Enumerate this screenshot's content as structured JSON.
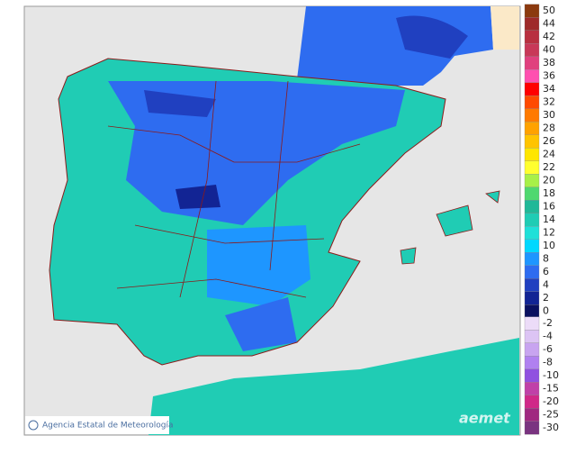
{
  "legend": {
    "entries": [
      {
        "label": "50",
        "color": "#8b3a0f"
      },
      {
        "label": "44",
        "color": "#9e2a2a"
      },
      {
        "label": "42",
        "color": "#b83040"
      },
      {
        "label": "40",
        "color": "#c83858"
      },
      {
        "label": "38",
        "color": "#e0407e"
      },
      {
        "label": "36",
        "color": "#ff50b0"
      },
      {
        "label": "34",
        "color": "#ff0000"
      },
      {
        "label": "32",
        "color": "#ff4a00"
      },
      {
        "label": "30",
        "color": "#ff7a00"
      },
      {
        "label": "28",
        "color": "#ffa200"
      },
      {
        "label": "26",
        "color": "#ffc400"
      },
      {
        "label": "24",
        "color": "#ffe600"
      },
      {
        "label": "22",
        "color": "#ffff30"
      },
      {
        "label": "20",
        "color": "#a8f048"
      },
      {
        "label": "18",
        "color": "#50d870"
      },
      {
        "label": "16",
        "color": "#20b898"
      },
      {
        "label": "14",
        "color": "#20ccb4"
      },
      {
        "label": "12",
        "color": "#20e0d8"
      },
      {
        "label": "10",
        "color": "#00d8ff"
      },
      {
        "label": "8",
        "color": "#1e96ff"
      },
      {
        "label": "6",
        "color": "#2e6cf0"
      },
      {
        "label": "4",
        "color": "#2040c0"
      },
      {
        "label": "2",
        "color": "#122494"
      },
      {
        "label": "0",
        "color": "#0a1060"
      },
      {
        "label": "-2",
        "color": "#ecdcf8"
      },
      {
        "label": "-4",
        "color": "#dcc4f4"
      },
      {
        "label": "-6",
        "color": "#c8a4f0"
      },
      {
        "label": "-8",
        "color": "#b080f0"
      },
      {
        "label": "-10",
        "color": "#9050e0"
      },
      {
        "label": "-15",
        "color": "#c040a8"
      },
      {
        "label": "-20",
        "color": "#d02888"
      },
      {
        "label": "-25",
        "color": "#a02880"
      },
      {
        "label": "-30",
        "color": "#7a3480"
      }
    ]
  },
  "credit": "Agencia Estatal de Meteorología",
  "logo": "aemet"
}
